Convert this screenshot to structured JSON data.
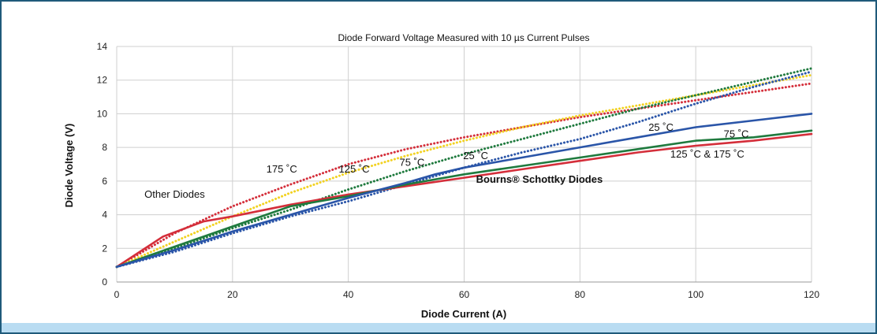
{
  "chart_data": {
    "type": "line",
    "title": "Diode Forward Voltage Measured with 10 µs Current Pulses",
    "xlabel": "Diode Current (A)",
    "ylabel": "Diode Voltage (V)",
    "xlim": [
      0,
      120
    ],
    "ylim": [
      0,
      14
    ],
    "x_ticks": [
      0,
      20,
      40,
      60,
      80,
      100,
      120
    ],
    "y_ticks": [
      0,
      2,
      4,
      6,
      8,
      10,
      12,
      14
    ],
    "grid": true,
    "series": [
      {
        "color": "#d42e3a",
        "style": "dotted",
        "points": [
          [
            0,
            0.9
          ],
          [
            10,
            2.9
          ],
          [
            20,
            4.5
          ],
          [
            30,
            5.8
          ],
          [
            40,
            7.0
          ],
          [
            50,
            7.9
          ],
          [
            60,
            8.6
          ],
          [
            70,
            9.2
          ],
          [
            80,
            9.8
          ],
          [
            90,
            10.3
          ],
          [
            100,
            10.8
          ],
          [
            110,
            11.3
          ],
          [
            120,
            11.8
          ]
        ]
      },
      {
        "color": "#f2d222",
        "style": "dotted",
        "points": [
          [
            0,
            0.9
          ],
          [
            10,
            2.4
          ],
          [
            20,
            3.9
          ],
          [
            30,
            5.3
          ],
          [
            40,
            6.5
          ],
          [
            50,
            7.5
          ],
          [
            60,
            8.4
          ],
          [
            70,
            9.2
          ],
          [
            80,
            9.9
          ],
          [
            90,
            10.5
          ],
          [
            100,
            11.1
          ],
          [
            110,
            11.7
          ],
          [
            120,
            12.3
          ]
        ]
      },
      {
        "color": "#1f7a3e",
        "style": "dotted",
        "points": [
          [
            0,
            0.9
          ],
          [
            10,
            2.0
          ],
          [
            20,
            3.2
          ],
          [
            30,
            4.3
          ],
          [
            40,
            5.5
          ],
          [
            50,
            6.6
          ],
          [
            60,
            7.6
          ],
          [
            70,
            8.5
          ],
          [
            80,
            9.4
          ],
          [
            90,
            10.3
          ],
          [
            100,
            11.1
          ],
          [
            110,
            11.9
          ],
          [
            120,
            12.7
          ]
        ]
      },
      {
        "color": "#2a55a8",
        "style": "dotted",
        "points": [
          [
            0,
            0.9
          ],
          [
            10,
            1.8
          ],
          [
            20,
            2.9
          ],
          [
            30,
            3.9
          ],
          [
            40,
            4.8
          ],
          [
            50,
            5.8
          ],
          [
            60,
            6.8
          ],
          [
            70,
            7.7
          ],
          [
            80,
            8.5
          ],
          [
            90,
            9.5
          ],
          [
            100,
            10.6
          ],
          [
            110,
            11.6
          ],
          [
            120,
            12.5
          ]
        ]
      },
      {
        "color": "#d42e3a",
        "style": "solid",
        "points": [
          [
            0,
            0.9
          ],
          [
            8,
            2.7
          ],
          [
            15,
            3.6
          ],
          [
            20,
            3.9
          ],
          [
            30,
            4.6
          ],
          [
            40,
            5.2
          ],
          [
            50,
            5.7
          ],
          [
            60,
            6.2
          ],
          [
            70,
            6.7
          ],
          [
            80,
            7.2
          ],
          [
            90,
            7.7
          ],
          [
            100,
            8.1
          ],
          [
            110,
            8.4
          ],
          [
            120,
            8.8
          ]
        ]
      },
      {
        "color": "#1f7a3e",
        "style": "solid",
        "points": [
          [
            0,
            0.9
          ],
          [
            10,
            2.1
          ],
          [
            20,
            3.3
          ],
          [
            30,
            4.5
          ],
          [
            40,
            5.1
          ],
          [
            50,
            5.8
          ],
          [
            60,
            6.4
          ],
          [
            70,
            6.9
          ],
          [
            80,
            7.4
          ],
          [
            90,
            7.9
          ],
          [
            100,
            8.4
          ],
          [
            110,
            8.6
          ],
          [
            120,
            9.0
          ]
        ]
      },
      {
        "color": "#2a55a8",
        "style": "solid",
        "points": [
          [
            0,
            0.9
          ],
          [
            10,
            1.9
          ],
          [
            20,
            3.0
          ],
          [
            30,
            4.0
          ],
          [
            40,
            5.0
          ],
          [
            50,
            5.9
          ],
          [
            55,
            6.4
          ],
          [
            60,
            6.8
          ],
          [
            70,
            7.4
          ],
          [
            80,
            8.0
          ],
          [
            90,
            8.6
          ],
          [
            100,
            9.2
          ],
          [
            110,
            9.6
          ],
          [
            120,
            10.0
          ]
        ]
      }
    ],
    "annotations": [
      {
        "text": "Other Diodes",
        "x": 10,
        "y": 5.0,
        "bold": false
      },
      {
        "text": "175 ˚C",
        "x": 28.5,
        "y": 6.5,
        "bold": false
      },
      {
        "text": "125 ˚C",
        "x": 41,
        "y": 6.5,
        "bold": false
      },
      {
        "text": "75 ˚C",
        "x": 51,
        "y": 6.9,
        "bold": false
      },
      {
        "text": "25 ˚C",
        "x": 62,
        "y": 7.3,
        "bold": false
      },
      {
        "text": "25 ˚C",
        "x": 94,
        "y": 9.0,
        "bold": false
      },
      {
        "text": "75 ˚C",
        "x": 107,
        "y": 8.6,
        "bold": false
      },
      {
        "text": "125 ˚C & 175 ˚C",
        "x": 102,
        "y": 7.4,
        "bold": false
      },
      {
        "text": "Bourns® Schottky Diodes",
        "x": 73,
        "y": 5.9,
        "bold": true
      }
    ]
  }
}
